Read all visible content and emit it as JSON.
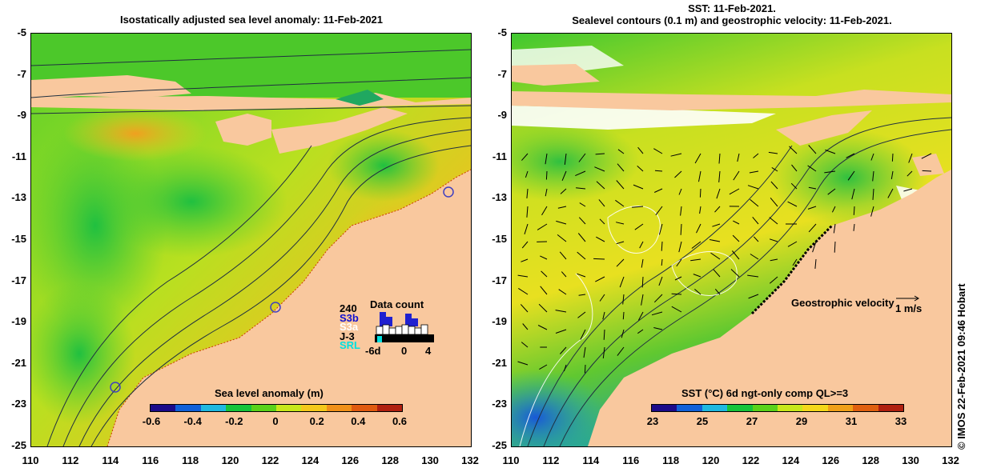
{
  "left_panel": {
    "title": "Isostatically adjusted sea level anomaly: 11-Feb-2021",
    "colorbar_label": "Sea level anomaly (m)",
    "colorbar_ticks": [
      "-0.6",
      "-0.4",
      "-0.2",
      "0",
      "0.2",
      "0.4",
      "0.6"
    ],
    "colorbar_colors": [
      "#1b0a8a",
      "#1060d8",
      "#1fb8e0",
      "#16c43a",
      "#5ad21a",
      "#c8e81a",
      "#f4c81a",
      "#f09018",
      "#e05a10",
      "#b02010"
    ],
    "data_count": {
      "title": "Data count",
      "labels": [
        "240",
        "S3b",
        "S3a",
        "J-3",
        "SRL"
      ],
      "label_colors": [
        "#000000",
        "#1010d0",
        "#ffffff",
        "#000000",
        "#00e0e0"
      ],
      "x_ticks": [
        "-6d",
        "0",
        "4"
      ]
    }
  },
  "right_panel": {
    "title_line1": "SST: 11-Feb-2021.",
    "title_line2": "Sealevel contours (0.1 m) and geostrophic velocity: 11-Feb-2021.",
    "colorbar_label": "SST (°C) 6d ngt-only comp QL>=3",
    "colorbar_ticks": [
      "23",
      "25",
      "27",
      "29",
      "31",
      "33"
    ],
    "colorbar_colors": [
      "#1b0a8a",
      "#1060d8",
      "#1fb8e0",
      "#16c43a",
      "#5ad21a",
      "#c8e81a",
      "#f4d81a",
      "#f0a018",
      "#e06010",
      "#b02010"
    ],
    "velocity_legend": "Geostrophic velocity",
    "velocity_scale": "1 m/s"
  },
  "axes": {
    "y_ticks": [
      "-5",
      "-7",
      "-9",
      "-11",
      "-13",
      "-15",
      "-17",
      "-19",
      "-21",
      "-23",
      "-25"
    ],
    "x_ticks": [
      "110",
      "112",
      "114",
      "116",
      "118",
      "120",
      "122",
      "124",
      "126",
      "128",
      "130",
      "132"
    ]
  },
  "credit": "© IMOS 22-Feb-2021 09:46 Hobart",
  "colors": {
    "land": "#f9c89e",
    "ocean_green": "#4ccc2a",
    "ocean_yellow": "#d0e41e",
    "ocean_orange": "#f0b020"
  }
}
